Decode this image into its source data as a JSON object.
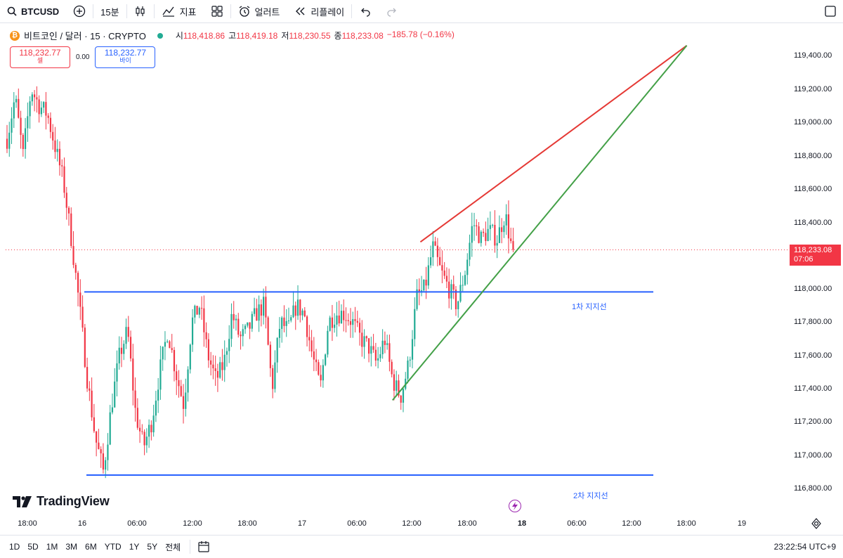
{
  "toolbar": {
    "symbol": "BTCUSD",
    "interval": "15분",
    "indicators_label": "지표",
    "alert_label": "얼러트",
    "replay_label": "리플레이"
  },
  "legend": {
    "title": "비트코인 / 달러 · 15 · CRYPTO",
    "open_label": "시",
    "open": "118,418.86",
    "high_label": "고",
    "high": "118,419.18",
    "low_label": "저",
    "low": "118,230.55",
    "close_label": "종",
    "close": "118,233.08",
    "change": "−185.78 (−0.16%)"
  },
  "trade": {
    "sell_price": "118,232.77",
    "sell_label": "셀",
    "spread": "0.00",
    "buy_price": "118,232.77",
    "buy_label": "바이"
  },
  "price_axis": {
    "ticks": [
      "119,400.00",
      "119,200.00",
      "119,000.00",
      "118,800.00",
      "118,600.00",
      "118,400.00",
      "118,000.00",
      "117,800.00",
      "117,600.00",
      "117,400.00",
      "117,200.00",
      "117,000.00",
      "116,800.00"
    ],
    "current_price": "118,233.08",
    "countdown": "07:06"
  },
  "time_axis": {
    "ticks": [
      "18:00",
      "16",
      "06:00",
      "12:00",
      "18:00",
      "17",
      "06:00",
      "12:00",
      "18:00",
      "18",
      "06:00",
      "12:00",
      "18:00",
      "19"
    ]
  },
  "drawings": {
    "support1_label": "1차 지지선",
    "support2_label": "2차 지지선"
  },
  "watermark": "TradingView",
  "bottom": {
    "ranges": [
      "1D",
      "5D",
      "1M",
      "3M",
      "6M",
      "YTD",
      "1Y",
      "5Y",
      "전체"
    ],
    "clock": "23:22:54 UTC+9"
  },
  "chart_data": {
    "type": "candlestick",
    "symbol": "BTCUSD",
    "interval": "15",
    "y_range": [
      116700,
      119550
    ],
    "current_price": 118233.08,
    "colors": {
      "up": "#22ab94",
      "down": "#f23645",
      "support": "#2962ff",
      "resistance": "#e53935",
      "trend": "#43a047"
    },
    "close_path": [
      118900,
      119150,
      118800,
      119200,
      119100,
      119050,
      118850,
      118650,
      118300,
      117900,
      117450,
      117100,
      116900,
      117300,
      117600,
      117750,
      117250,
      117050,
      117200,
      117500,
      117750,
      117500,
      117300,
      117800,
      117900,
      117600,
      117450,
      117550,
      117850,
      117700,
      117750,
      117850,
      117900,
      117400,
      117800,
      117750,
      117900,
      117850,
      117600,
      117400,
      117800,
      117850,
      117850,
      117800,
      117700,
      117650,
      117550,
      117700,
      117450,
      117350,
      117550,
      117950,
      118000,
      118250,
      118100,
      118000,
      117900,
      118100,
      118400,
      118300,
      118350,
      118300,
      118450,
      118200
    ],
    "wick_noise": 90,
    "lines": [
      {
        "name": "1차 지지선",
        "y": 117980
      },
      {
        "name": "2차 지지선",
        "y": 116880
      }
    ],
    "trendlines": [
      {
        "name": "resistance",
        "from": [
          "17 13:00",
          118280
        ],
        "to": [
          "18 18:00",
          119460
        ]
      },
      {
        "name": "support",
        "from": [
          "17 09:30",
          117330
        ],
        "to": [
          "18 18:00",
          119460
        ]
      }
    ]
  }
}
